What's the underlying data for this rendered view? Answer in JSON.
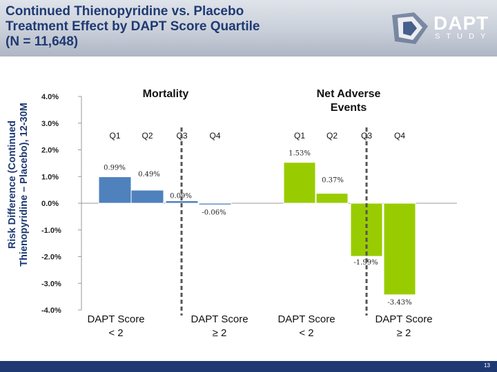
{
  "header": {
    "title": "Continued Thienopyridine vs. Placebo\nTreatment Effect by DAPT Score Quartile\n(N  = 11,648)",
    "logo_text": "DAPT",
    "logo_sub": "STUDY"
  },
  "footer": {
    "page_number": "13"
  },
  "chart_data": {
    "type": "bar",
    "ylabel": "Risk Difference (Continued\nThienopyridine – Placebo), 12-30M",
    "yticks": [
      4.0,
      3.0,
      2.0,
      1.0,
      0.0,
      -1.0,
      -2.0,
      -3.0,
      -4.0
    ],
    "ytick_labels": [
      "4.0%",
      "3.0%",
      "2.0%",
      "1.0%",
      "0.0%",
      "-1.0%",
      "-2.0%",
      "-3.0%",
      "-4.0%"
    ],
    "ylim": [
      -4.0,
      4.0
    ],
    "panels": [
      {
        "title": "Mortality",
        "color": "#4f81bd",
        "categories": [
          "Q1",
          "Q2",
          "Q3",
          "Q4"
        ],
        "values": [
          0.99,
          0.49,
          0.09,
          -0.06
        ],
        "labels": [
          "0.99%",
          "0.49%",
          "0.09%",
          "-0.06%"
        ],
        "groups": [
          "DAPT Score\n< 2",
          "DAPT Score\n≥ 2"
        ]
      },
      {
        "title": "Net Adverse\nEvents",
        "color": "#99cc00",
        "categories": [
          "Q1",
          "Q2",
          "Q3",
          "Q4"
        ],
        "values": [
          1.53,
          0.37,
          -1.99,
          -3.43
        ],
        "labels": [
          "1.53%",
          "0.37%",
          "-1.99%",
          "-3.43%"
        ],
        "groups": [
          "DAPT Score\n< 2",
          "DAPT Score\n≥ 2"
        ]
      }
    ]
  }
}
